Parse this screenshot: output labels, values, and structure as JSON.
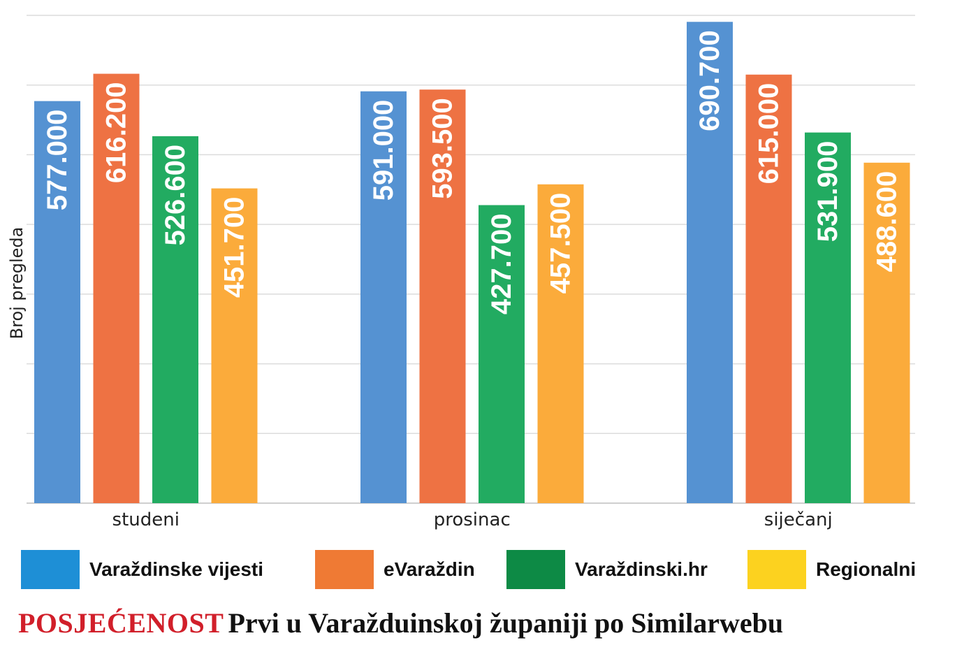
{
  "chart_data": {
    "type": "bar",
    "categories": [
      "studeni",
      "prosinac",
      "siječanj"
    ],
    "series": [
      {
        "name": "Varaždinske vijesti",
        "values": [
          577000,
          591000,
          690700
        ],
        "labels": [
          "577.000",
          "591.000",
          "690.700"
        ],
        "color": "#5592d2"
      },
      {
        "name": "eVaraždin",
        "values": [
          616200,
          593500,
          615000
        ],
        "labels": [
          "616.200",
          "593.500",
          "615.000"
        ],
        "color": "#ee7243"
      },
      {
        "name": "Varaždinski.hr",
        "values": [
          526600,
          427700,
          531900
        ],
        "labels": [
          "526.600",
          "427.700",
          "531.900"
        ],
        "color": "#22ab61"
      },
      {
        "name": "Regionalni",
        "values": [
          451700,
          457500,
          488600
        ],
        "labels": [
          "451.700",
          "457.500",
          "488.600"
        ],
        "color": "#fbab3b"
      }
    ],
    "ylabel": "Broj pregleda",
    "ylim": [
      0,
      700000
    ],
    "grid": true,
    "legend": "bottom",
    "legend_colors": [
      "#1e8fd6",
      "#ef7a34",
      "#0d8a45",
      "#fcd21f"
    ]
  },
  "caption": {
    "kicker": "POSJEĆENOST",
    "text": "Prvi u Varažduinskoj županiji po Similarwebu",
    "kicker_color": "#d11f2a"
  }
}
